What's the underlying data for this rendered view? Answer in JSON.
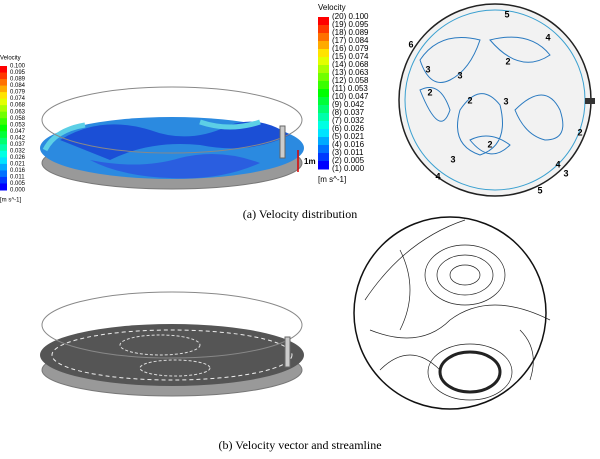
{
  "legend_left": {
    "title": "Velocity",
    "ticks": [
      "0.100",
      "0.095",
      "0.089",
      "0.084",
      "0.079",
      "0.074",
      "0.068",
      "0.063",
      "0.058",
      "0.053",
      "0.047",
      "0.042",
      "0.037",
      "0.032",
      "0.026",
      "0.021",
      "0.016",
      "0.011",
      "0.005",
      "0.000"
    ],
    "unit": "[m s^-1]"
  },
  "legend_mid": {
    "title": "Velocity",
    "entries": [
      "(20) 0.100",
      "(19) 0.095",
      "(18) 0.089",
      "(17) 0.084",
      "(16) 0.079",
      "(15) 0.074",
      "(14) 0.068",
      "(13) 0.063",
      "(12) 0.058",
      "(11) 0.053",
      "(10) 0.047",
      "(9) 0.042",
      "(8) 0.037",
      "(7) 0.032",
      "(6) 0.026",
      "(5) 0.021",
      "(4) 0.016",
      "(3) 0.011",
      "(2) 0.005",
      "(1) 0.000"
    ],
    "unit": "[m s^-1]"
  },
  "scale_label": "1m",
  "contour_labels": [
    "5",
    "4",
    "6",
    "3",
    "3",
    "2",
    "2",
    "2",
    "3",
    "2",
    "2",
    "3",
    "4",
    "5",
    "4",
    "3"
  ],
  "captions": [
    "(a)  Velocity distribution",
    "(b)  Velocity vector and streamline"
  ]
}
